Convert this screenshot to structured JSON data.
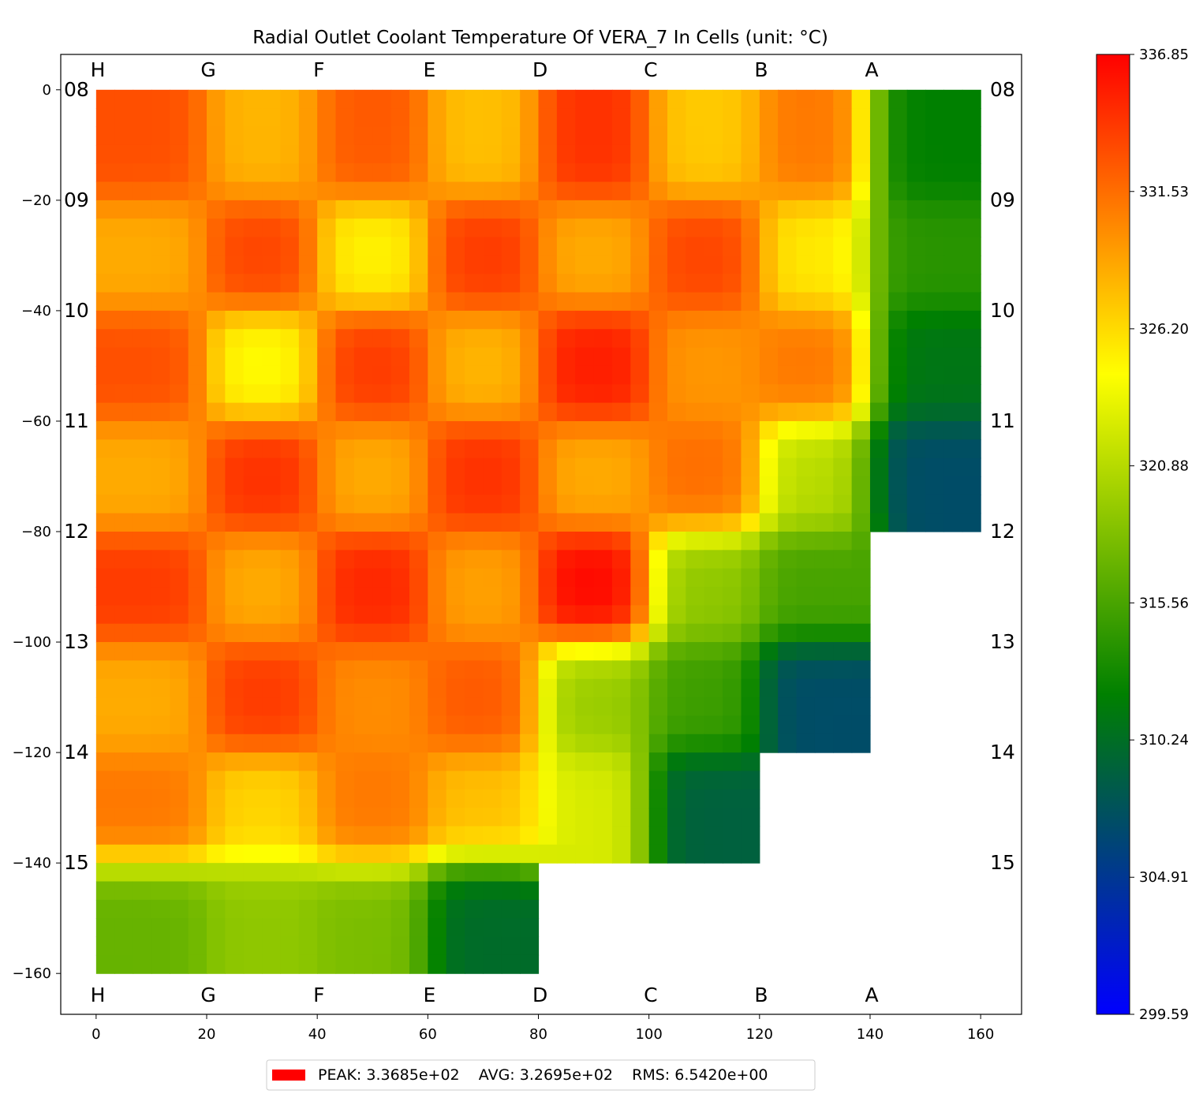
{
  "chart_data": {
    "type": "heatmap",
    "title": "Radial Outlet Coolant Temperature Of VERA_7 In Cells (unit: °C)",
    "xlabel": "",
    "ylabel": "",
    "xlim": [
      -6.4,
      167.4
    ],
    "ylim": [
      -167.4,
      6.4
    ],
    "x_ticks": [
      0,
      20,
      40,
      60,
      80,
      100,
      120,
      140,
      160
    ],
    "y_ticks": [
      0,
      -20,
      -40,
      -60,
      -80,
      -100,
      -120,
      -140,
      -160
    ],
    "y_tick_labels": [
      "0",
      "−20",
      "−40",
      "−60",
      "−80",
      "−100",
      "−120",
      "−140",
      "−160"
    ],
    "column_labels": [
      "H",
      "G",
      "F",
      "E",
      "D",
      "C",
      "B",
      "A"
    ],
    "row_labels": [
      "08",
      "09",
      "10",
      "11",
      "12",
      "13",
      "14",
      "15"
    ],
    "row_extent_columns": [
      8,
      8,
      8,
      8,
      7,
      7,
      6,
      4
    ],
    "cell_values": [
      [
        333.0,
        328.0,
        332.5,
        327.5,
        334.5,
        327.0,
        331.0,
        312.0
      ],
      [
        328.5,
        333.5,
        325.0,
        334.0,
        328.5,
        333.5,
        325.5,
        314.0
      ],
      [
        333.0,
        324.5,
        334.0,
        328.0,
        335.5,
        329.5,
        331.0,
        311.0
      ],
      [
        328.5,
        334.5,
        328.5,
        334.5,
        328.5,
        331.5,
        321.0,
        307.0
      ],
      [
        334.0,
        328.5,
        335.0,
        329.0,
        336.5,
        319.0,
        315.5,
        null
      ],
      [
        328.5,
        334.0,
        330.0,
        332.5,
        319.5,
        315.0,
        307.0,
        null
      ],
      [
        331.0,
        326.5,
        331.0,
        327.5,
        322.5,
        309.0,
        null,
        null
      ],
      [
        317.0,
        319.0,
        318.0,
        310.0,
        null,
        null,
        null,
        null
      ]
    ],
    "colorbar": {
      "min": 299.59,
      "max": 336.85,
      "tick_labels": [
        "336.85",
        "331.53",
        "326.20",
        "320.88",
        "315.56",
        "310.24",
        "304.91",
        "299.59"
      ],
      "colors": [
        "#0000ff",
        "#008000",
        "#ffff00",
        "#ff0000"
      ]
    },
    "legend": {
      "position": "bottom-center",
      "swatch_color": "#ff0000",
      "text": "PEAK: 3.3685e+02    AVG: 3.2695e+02    RMS: 6.5420e+00",
      "peak": 336.85,
      "avg": 326.95,
      "rms": 6.542
    }
  }
}
